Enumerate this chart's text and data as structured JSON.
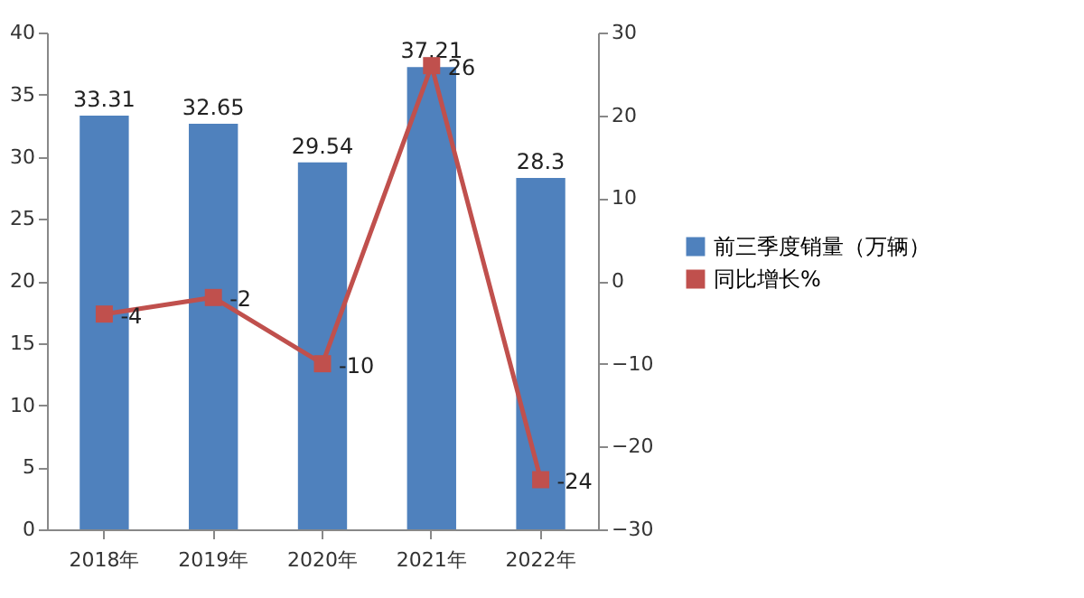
{
  "chart_data": {
    "type": "bar",
    "categories": [
      "2018年",
      "2019年",
      "2020年",
      "2021年",
      "2022年"
    ],
    "series": [
      {
        "name": "前三季度销量（万辆）",
        "color": "#4f81bd",
        "values": [
          33.31,
          32.65,
          29.54,
          37.21,
          28.3
        ]
      },
      {
        "name": "同比增长%",
        "type": "line",
        "axis": "y2",
        "color": "#c0504d",
        "values": [
          -4,
          -2,
          -10,
          26,
          -24
        ]
      }
    ],
    "ylim": [
      0,
      40
    ],
    "yticks": [
      0,
      5,
      10,
      15,
      20,
      25,
      30,
      35,
      40
    ],
    "y2lim": [
      -30,
      30
    ],
    "y2ticks": [
      -30,
      -20,
      -10,
      0,
      10,
      20,
      30
    ],
    "data_labels": true,
    "legend": "right",
    "marker": "square",
    "line_style": "solid"
  }
}
